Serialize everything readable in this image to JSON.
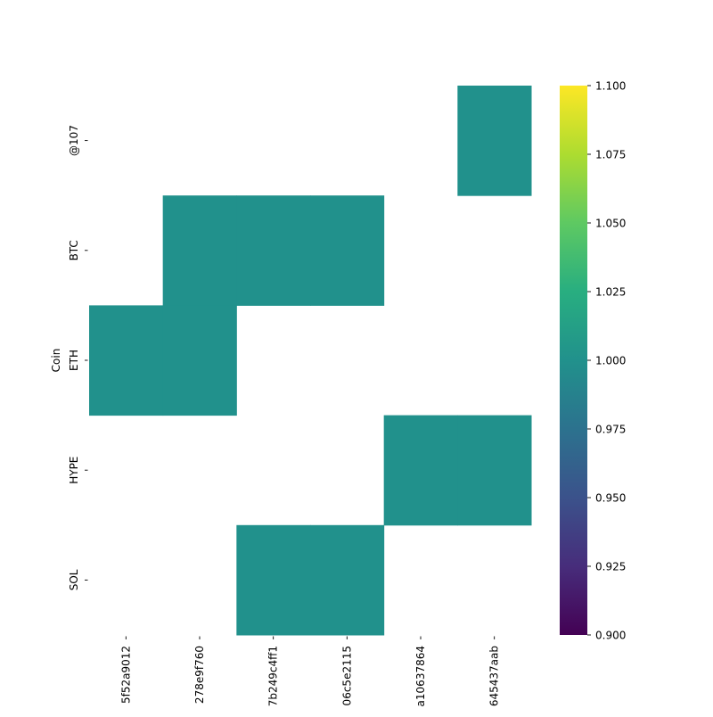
{
  "chart_data": {
    "type": "heatmap",
    "title": "",
    "xlabel": "",
    "ylabel": "Coin",
    "rows": [
      "@107",
      "BTC",
      "ETH",
      "HYPE",
      "SOL"
    ],
    "columns": [
      "0x…5f52a9012",
      "0x…278e9f760",
      "0x…7b249c4ff1",
      "0x…06c5e2115",
      "0x…a10637864",
      "0x…645437aab"
    ],
    "column_tick_labels": [
      "5f52a9012",
      "278e9f760",
      "7b249c4ff1",
      "06c5e2115",
      "a10637864",
      "645437aab"
    ],
    "values": [
      [
        null,
        null,
        null,
        null,
        null,
        1
      ],
      [
        null,
        1,
        1,
        1,
        null,
        null
      ],
      [
        1,
        1,
        null,
        null,
        null,
        null
      ],
      [
        null,
        null,
        null,
        null,
        1,
        1
      ],
      [
        null,
        null,
        1,
        1,
        null,
        null
      ]
    ],
    "colormap": "viridis",
    "cell_color": "#21918c",
    "colorbar": {
      "vmin": 0.9,
      "vmax": 1.1,
      "ticks": [
        "0.900",
        "0.925",
        "0.950",
        "0.975",
        "1.000",
        "1.025",
        "1.050",
        "1.075",
        "1.100"
      ]
    },
    "grid": false,
    "missing_cells": "blank"
  }
}
